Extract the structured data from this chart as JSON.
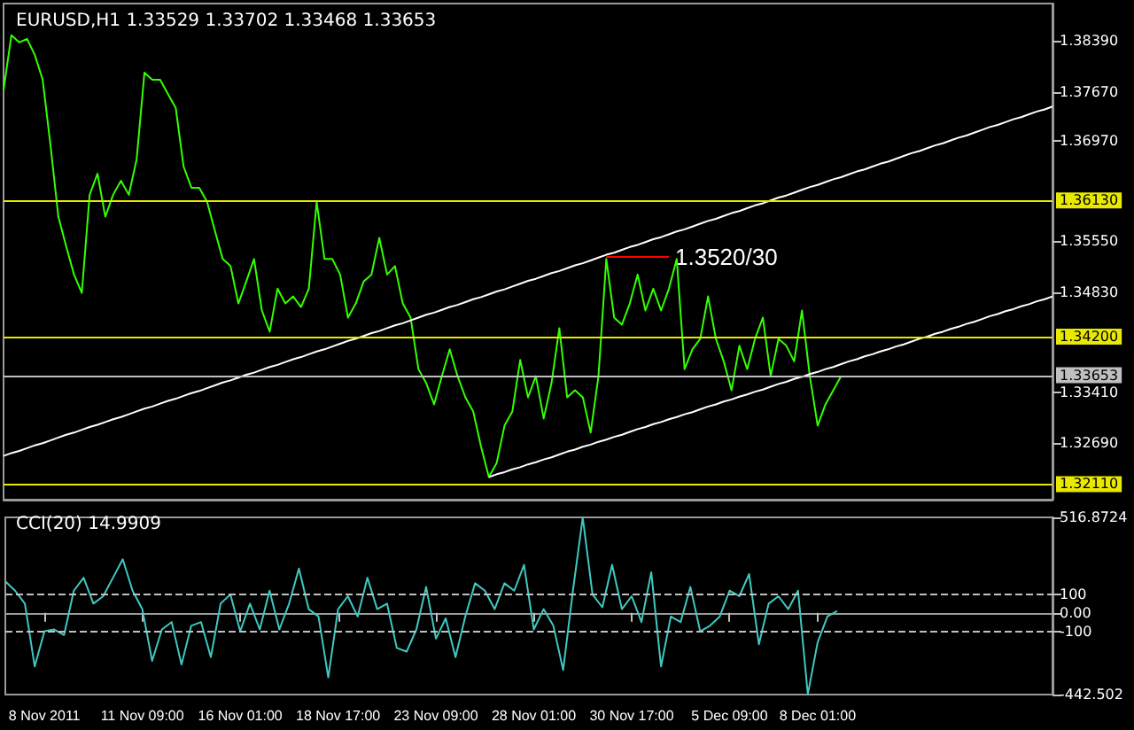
{
  "chart_data": [
    {
      "type": "line",
      "title": "EURUSD,H1 1.33529 1.33702 1.33468 1.33653",
      "categories": [
        null,
        null,
        null,
        null,
        null,
        null,
        null,
        null,
        null,
        null,
        null,
        null,
        null,
        null,
        null,
        null,
        null,
        null,
        null,
        null,
        null,
        null,
        null,
        null,
        null,
        null,
        null,
        null,
        null,
        null,
        null,
        null,
        null,
        null,
        null,
        null,
        null,
        null,
        null,
        null,
        null,
        null,
        null,
        null,
        null,
        null,
        null,
        null,
        null,
        null,
        null,
        null,
        null,
        null,
        null,
        null,
        null,
        null,
        null,
        null,
        null,
        null,
        null,
        null,
        null,
        null,
        null,
        null,
        null,
        null,
        null,
        null,
        null,
        null,
        null,
        null,
        null,
        null,
        null,
        null,
        null,
        null,
        null,
        null,
        null,
        null,
        null,
        null,
        null,
        null,
        null,
        null,
        null,
        null,
        null,
        null,
        null,
        null,
        null,
        null,
        null,
        null,
        null,
        null,
        null,
        null,
        null,
        null,
        null,
        null,
        null,
        null,
        null,
        null,
        null,
        null,
        null,
        null,
        null,
        null,
        null,
        null,
        null,
        null,
        null,
        null,
        null,
        null,
        null,
        null,
        null,
        null,
        null,
        null,
        null
      ],
      "ylim": [
        1.3189,
        1.3892
      ],
      "yticks": [
        {
          "value": 1.3839,
          "label": "1.38390"
        },
        {
          "value": 1.3767,
          "label": "1.37670"
        },
        {
          "value": 1.3697,
          "label": "1.36970"
        },
        {
          "value": 1.3555,
          "label": "1.35550"
        },
        {
          "value": 1.3483,
          "label": "1.34830"
        },
        {
          "value": 1.3341,
          "label": "1.33410"
        },
        {
          "value": 1.3269,
          "label": "1.32690"
        }
      ],
      "tick_labels": "y",
      "marker": "none",
      "series": [
        {
          "color": "#33ff00",
          "values": [
            1.3769,
            1.3847,
            1.3837,
            1.3842,
            1.3819,
            1.3784,
            1.3691,
            1.359,
            1.3548,
            1.3508,
            1.3482,
            1.3621,
            1.3651,
            1.359,
            1.3621,
            1.3641,
            1.3621,
            1.3671,
            1.3794,
            1.3784,
            1.3784,
            1.3764,
            1.3744,
            1.3661,
            1.3631,
            1.3631,
            1.3611,
            1.357,
            1.353,
            1.352,
            1.3467,
            1.3498,
            1.353,
            1.3457,
            1.3427,
            1.3488,
            1.3467,
            1.3477,
            1.3462,
            1.3488,
            1.3611,
            1.353,
            1.353,
            1.3508,
            1.3447,
            1.3467,
            1.3498,
            1.3508,
            1.356,
            1.3508,
            1.352,
            1.3467,
            1.3447,
            1.3374,
            1.3354,
            1.3324,
            1.3364,
            1.3402,
            1.3364,
            1.3334,
            1.3314,
            1.3264,
            1.3221,
            1.3241,
            1.3294,
            1.3314,
            1.3387,
            1.3334,
            1.3364,
            1.3304,
            1.3354,
            1.3432,
            1.3334,
            1.3344,
            1.3334,
            1.3284,
            1.3364,
            1.353,
            1.3447,
            1.3437,
            1.3467,
            1.3508,
            1.3457,
            1.3488,
            1.3457,
            1.3488,
            1.353,
            1.3374,
            1.3402,
            1.3417,
            1.3477,
            1.3417,
            1.3385,
            1.3344,
            1.3407,
            1.3374,
            1.3417,
            1.3447,
            1.3364,
            1.3417,
            1.3407,
            1.3385,
            1.3457,
            1.3364,
            1.3294,
            1.3324,
            1.3344,
            1.3364,
            null,
            null,
            null,
            null,
            null,
            null,
            null,
            null,
            null,
            null,
            null,
            null,
            null,
            null,
            null,
            null,
            null,
            null,
            null,
            null,
            null,
            null,
            null,
            null,
            null,
            null,
            null
          ]
        },
        {
          "type": "line",
          "color": "#ffffff",
          "values": [
            1.3251,
            1.3255,
            1.3258,
            1.3262,
            1.3266,
            1.3269,
            1.3273,
            1.3277,
            1.3281,
            1.3284,
            1.3288,
            1.3292,
            1.3295,
            1.3299,
            1.3303,
            1.3306,
            1.331,
            1.3314,
            1.3318,
            1.3321,
            1.3325,
            1.3329,
            1.3332,
            1.3336,
            1.334,
            1.3343,
            1.3347,
            1.3351,
            1.3355,
            1.3358,
            1.3362,
            1.3366,
            1.3369,
            1.3373,
            1.3377,
            1.338,
            1.3384,
            1.3388,
            1.3391,
            1.3395,
            1.3399,
            1.3402,
            1.3406,
            1.341,
            1.3414,
            1.3417,
            1.3421,
            1.3425,
            1.3428,
            1.3432,
            1.3436,
            1.3439,
            1.3443,
            1.3447,
            1.3451,
            1.3454,
            1.3458,
            1.3462,
            1.3465,
            1.3469,
            1.3473,
            1.3476,
            1.348,
            1.3484,
            1.3487,
            1.3491,
            1.3495,
            1.3499,
            1.3502,
            1.3506,
            1.351,
            1.3513,
            1.3517,
            1.3521,
            1.3524,
            1.3528,
            1.3532,
            1.3536,
            1.3539,
            1.3543,
            1.3547,
            1.355,
            1.3554,
            1.3558,
            1.3561,
            1.3565,
            1.3569,
            1.3572,
            1.3576,
            1.358,
            1.3584,
            1.3587,
            1.3591,
            1.3595,
            1.3598,
            1.3602,
            1.3606,
            1.3609,
            1.3613,
            1.3617,
            1.362,
            1.3624,
            1.3628,
            1.3632,
            1.3635,
            1.3639,
            1.3643,
            1.3646,
            1.365,
            1.3654,
            1.3657,
            1.3661,
            1.3665,
            1.3668,
            1.3672,
            1.3676,
            1.368,
            1.3683,
            1.3687,
            1.3691,
            1.3694,
            1.3698,
            1.3702,
            1.3705,
            1.3709,
            1.3713,
            1.3717,
            1.372,
            1.3724,
            1.3728,
            1.3731,
            1.3735,
            1.3739,
            1.3742,
            1.3746
          ]
        },
        {
          "type": "line",
          "color": "#ffffff",
          "values": [
            null,
            null,
            null,
            null,
            null,
            null,
            null,
            null,
            null,
            null,
            null,
            null,
            null,
            null,
            null,
            null,
            null,
            null,
            null,
            null,
            null,
            null,
            null,
            null,
            null,
            null,
            null,
            null,
            null,
            null,
            null,
            null,
            null,
            null,
            null,
            null,
            null,
            null,
            null,
            null,
            null,
            null,
            null,
            null,
            null,
            null,
            null,
            null,
            null,
            null,
            null,
            null,
            null,
            null,
            null,
            null,
            null,
            null,
            null,
            null,
            null,
            null,
            1.3221,
            1.3225,
            1.3228,
            1.3232,
            1.3235,
            1.3239,
            1.3242,
            1.3246,
            1.3249,
            1.3253,
            1.3257,
            1.326,
            1.3264,
            1.3267,
            1.3271,
            1.3274,
            1.3278,
            1.3281,
            1.3285,
            1.3289,
            1.3292,
            1.3296,
            1.3299,
            1.3303,
            1.3306,
            1.331,
            1.3313,
            1.3317,
            1.3321,
            1.3324,
            1.3328,
            1.3331,
            1.3335,
            1.3338,
            1.3342,
            1.3345,
            1.3349,
            1.3353,
            1.3356,
            1.336,
            1.3363,
            1.3367,
            1.337,
            1.3374,
            1.3377,
            1.3381,
            1.3385,
            1.3388,
            1.3392,
            1.3395,
            1.3399,
            1.3402,
            1.3406,
            1.3409,
            1.3413,
            1.3417,
            1.342,
            1.3424,
            1.3427,
            1.3431,
            1.3434,
            1.3438,
            1.3441,
            1.3445,
            1.3449,
            1.3452,
            1.3456,
            1.3459,
            1.3463,
            1.3466,
            1.347,
            1.3473,
            1.3477
          ]
        },
        {
          "type": "line",
          "color": "#ff0000",
          "values": [
            null,
            null,
            null,
            null,
            null,
            null,
            null,
            null,
            null,
            null,
            null,
            null,
            null,
            null,
            null,
            null,
            null,
            null,
            null,
            null,
            null,
            null,
            null,
            null,
            null,
            null,
            null,
            null,
            null,
            null,
            null,
            null,
            null,
            null,
            null,
            null,
            null,
            null,
            null,
            null,
            null,
            null,
            null,
            null,
            null,
            null,
            null,
            null,
            null,
            null,
            null,
            null,
            null,
            null,
            null,
            null,
            null,
            null,
            null,
            null,
            null,
            null,
            null,
            null,
            null,
            null,
            null,
            null,
            null,
            null,
            null,
            null,
            null,
            null,
            null,
            null,
            null,
            1.3533,
            1.3533,
            1.3533,
            1.3533,
            1.3533,
            1.3533,
            1.3533,
            1.3533,
            1.3533,
            null,
            null,
            null,
            null,
            null,
            null,
            null,
            null,
            null,
            null,
            null,
            null,
            null,
            null,
            null,
            null,
            null,
            null,
            null,
            null,
            null,
            null,
            null,
            null,
            null,
            null,
            null,
            null,
            null,
            null,
            null,
            null,
            null,
            null,
            null,
            null,
            null,
            null,
            null,
            null,
            null,
            null,
            null,
            null,
            null,
            null,
            null,
            null,
            null
          ]
        }
      ],
      "ref_lines": [
        {
          "axis": "y",
          "value": 1.3613,
          "label": "1.36130",
          "color": "#e8e800"
        },
        {
          "axis": "y",
          "value": 1.342,
          "label": "1.34200",
          "color": "#e8e800"
        },
        {
          "axis": "y",
          "value": 1.3211,
          "label": "1.32110",
          "color": "#e8e800"
        },
        {
          "axis": "y",
          "value": 1.33653,
          "label": "1.33653",
          "color": "#c0c0c0"
        }
      ],
      "annotations": [
        "1.3520/30"
      ]
    },
    {
      "type": "line",
      "title": "CCI(20) 14.9909",
      "color": "#40c8c0",
      "marker": "none",
      "categories": [
        null,
        null,
        null,
        null,
        "8 Nov 2011",
        null,
        null,
        null,
        null,
        null,
        null,
        null,
        null,
        null,
        "11 Nov 09:00",
        null,
        null,
        null,
        null,
        null,
        null,
        null,
        null,
        null,
        "16 Nov 01:00",
        null,
        null,
        null,
        null,
        null,
        null,
        null,
        null,
        null,
        "18 Nov 17:00",
        null,
        null,
        null,
        null,
        null,
        null,
        null,
        null,
        null,
        "23 Nov 09:00",
        null,
        null,
        null,
        null,
        null,
        null,
        null,
        null,
        null,
        "28 Nov 01:00",
        null,
        null,
        null,
        null,
        null,
        null,
        null,
        null,
        null,
        "30 Nov 17:00",
        null,
        null,
        null,
        null,
        null,
        null,
        null,
        null,
        null,
        "5 Dec 09:00",
        null,
        null,
        null,
        null,
        null,
        null,
        null,
        null,
        "8 Dec 01:00",
        null,
        null,
        null,
        null,
        null,
        null,
        null,
        null,
        null,
        null,
        null,
        null,
        null,
        null,
        null,
        null,
        null,
        null,
        null,
        null,
        null,
        null,
        null,
        null
      ],
      "ylim": [
        -442.502,
        516.8724
      ],
      "yticks": [
        516.8724,
        100,
        {
          "value": 0,
          "label": "0.00"
        },
        -100,
        -442.502
      ],
      "values": [
        170,
        120,
        50,
        -290,
        -100,
        -90,
        -120,
        120,
        190,
        50,
        90,
        190,
        290,
        120,
        20,
        -260,
        -90,
        -50,
        -280,
        -70,
        -50,
        -240,
        50,
        100,
        -100,
        50,
        -90,
        120,
        -90,
        50,
        240,
        20,
        -20,
        -350,
        20,
        90,
        -20,
        190,
        20,
        50,
        -190,
        -210,
        -90,
        140,
        -140,
        -30,
        -240,
        -20,
        160,
        120,
        20,
        160,
        120,
        260,
        -90,
        20,
        -70,
        -310,
        120,
        516,
        100,
        30,
        260,
        20,
        90,
        -50,
        220,
        -290,
        -20,
        -50,
        140,
        -100,
        -70,
        -20,
        120,
        90,
        210,
        -170,
        50,
        90,
        20,
        120,
        -442,
        -160,
        -20,
        10,
        null,
        null,
        null,
        null,
        null,
        null,
        null,
        null,
        null,
        null,
        null,
        null,
        null,
        null,
        null,
        null,
        null,
        null,
        null,
        null,
        null,
        null
      ],
      "ref_lines": [
        {
          "axis": "y",
          "value": 100,
          "color": "#c0c0c0",
          "line_style": "dashed"
        },
        {
          "axis": "y",
          "value": -100,
          "color": "#c0c0c0",
          "line_style": "dashed"
        }
      ]
    }
  ]
}
